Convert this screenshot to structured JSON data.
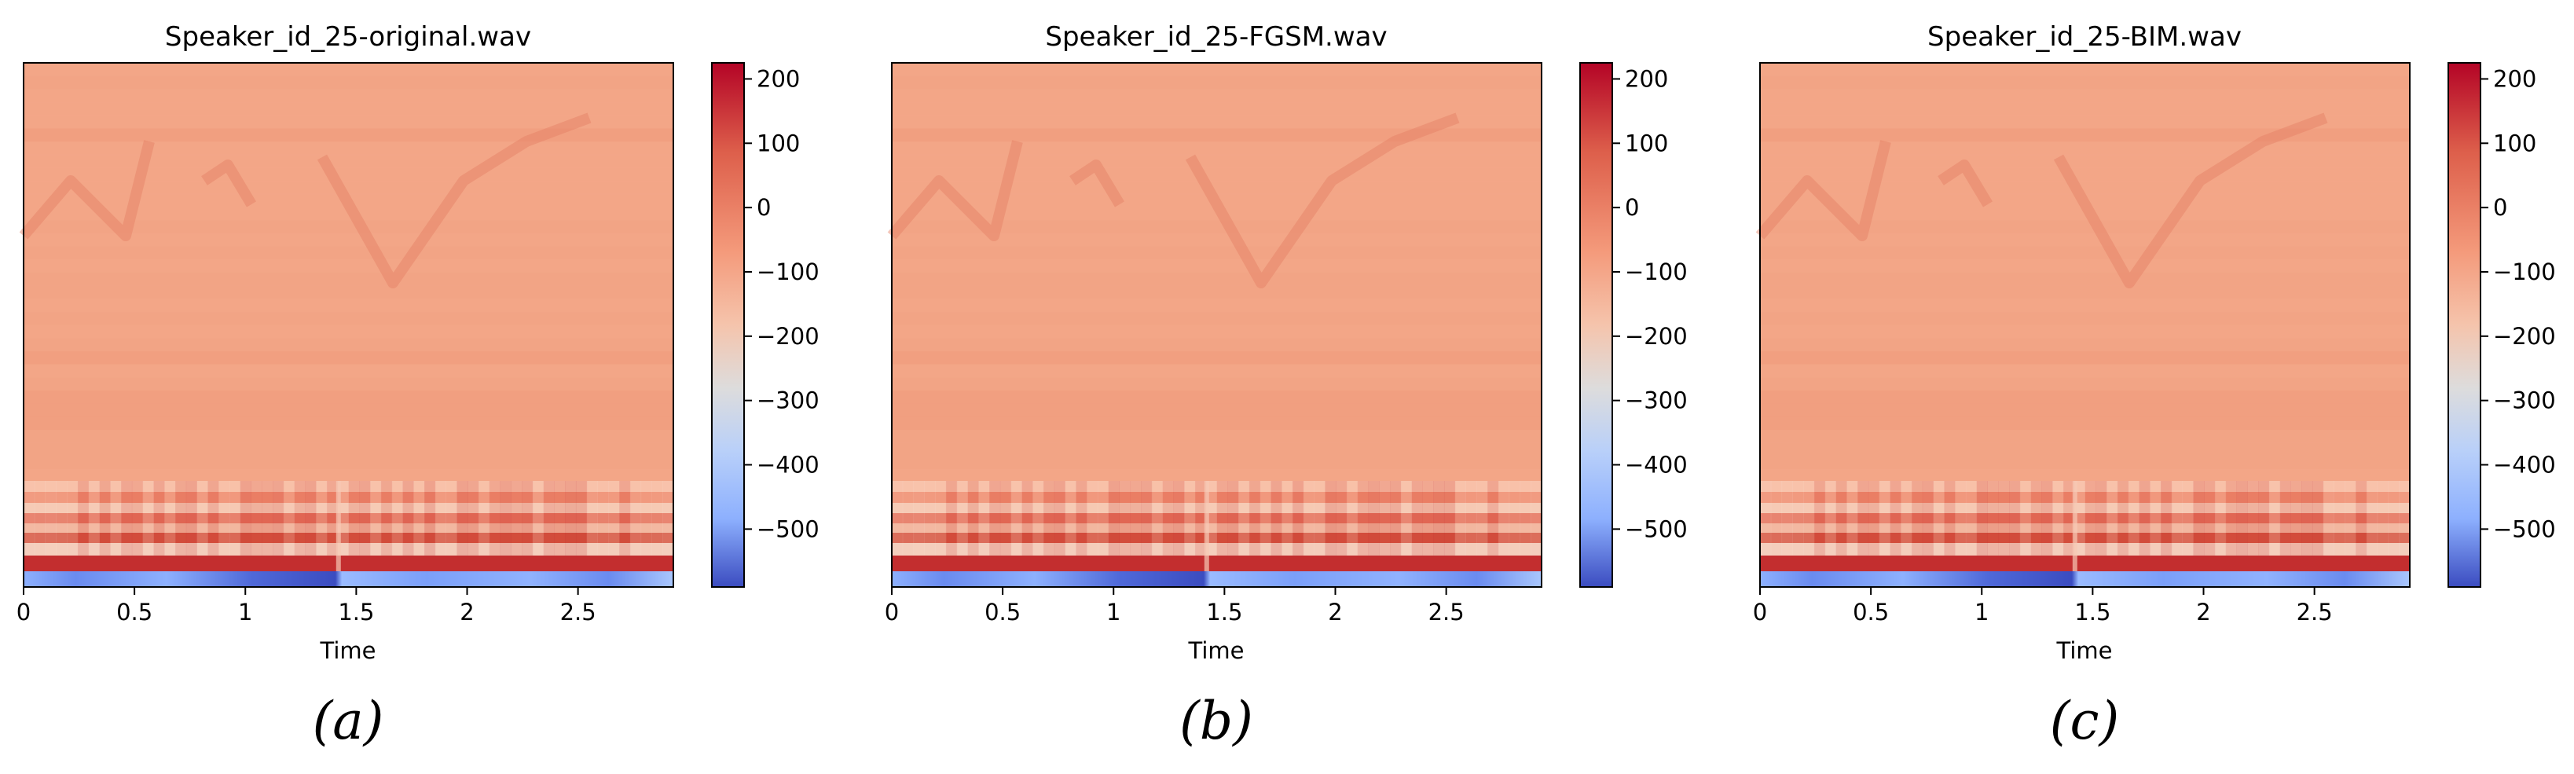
{
  "figure": {
    "captions": [
      "(a)",
      "(b)",
      "(c)"
    ]
  },
  "chart_data": [
    {
      "type": "heatmap",
      "title": "Speaker_id_25-original.wav",
      "xlabel": "Time",
      "ylabel": "",
      "x_ticks": [
        "0",
        "0.5",
        "1",
        "1.5",
        "2",
        "2.5"
      ],
      "x_tick_values": [
        0,
        0.5,
        1,
        1.5,
        2,
        2.5
      ],
      "xlim": [
        0,
        2.93
      ],
      "colorbar": {
        "ticks": [
          "200",
          "100",
          "0",
          "−100",
          "−200",
          "−300",
          "−400",
          "−500"
        ],
        "tick_values": [
          200,
          100,
          0,
          -100,
          -200,
          -300,
          -400,
          -500
        ],
        "range": [
          -590,
          225
        ],
        "colormap": "coolwarm"
      },
      "grid": false
    },
    {
      "type": "heatmap",
      "title": "Speaker_id_25-FGSM.wav",
      "xlabel": "Time",
      "ylabel": "",
      "x_ticks": [
        "0",
        "0.5",
        "1",
        "1.5",
        "2",
        "2.5"
      ],
      "x_tick_values": [
        0,
        0.5,
        1,
        1.5,
        2,
        2.5
      ],
      "xlim": [
        0,
        2.93
      ],
      "colorbar": {
        "ticks": [
          "200",
          "100",
          "0",
          "−100",
          "−200",
          "−300",
          "−400",
          "−500"
        ],
        "tick_values": [
          200,
          100,
          0,
          -100,
          -200,
          -300,
          -400,
          -500
        ],
        "range": [
          -590,
          225
        ],
        "colormap": "coolwarm"
      },
      "grid": false
    },
    {
      "type": "heatmap",
      "title": "Speaker_id_25-BIM.wav",
      "xlabel": "Time",
      "ylabel": "",
      "x_ticks": [
        "0",
        "0.5",
        "1",
        "1.5",
        "2",
        "2.5"
      ],
      "x_tick_values": [
        0,
        0.5,
        1,
        1.5,
        2,
        2.5
      ],
      "xlim": [
        0,
        2.93
      ],
      "colorbar": {
        "ticks": [
          "200",
          "100",
          "0",
          "−100",
          "−200",
          "−300",
          "−400",
          "−500"
        ],
        "tick_values": [
          200,
          100,
          0,
          -100,
          -200,
          -300,
          -400,
          -500
        ],
        "range": [
          -590,
          225
        ],
        "colormap": "coolwarm"
      },
      "grid": false
    }
  ]
}
